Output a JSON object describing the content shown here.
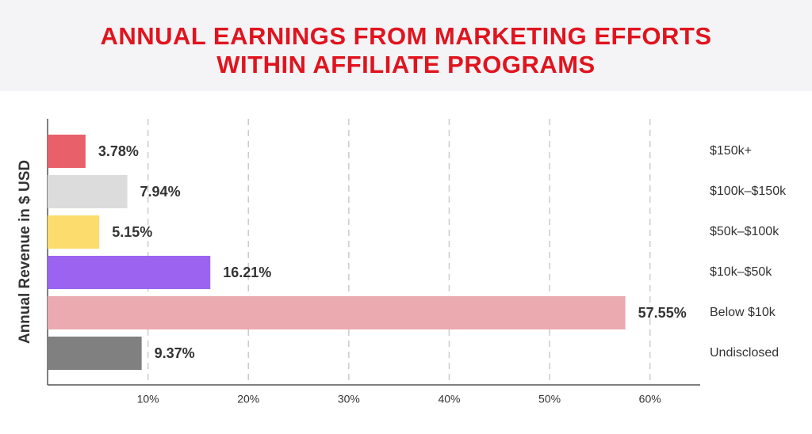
{
  "chart_data": {
    "type": "bar",
    "orientation": "horizontal",
    "title": "ANNUAL EARNINGS FROM MARKETING EFFORTS WITHIN AFFILIATE PROGRAMS",
    "y_axis_label": "Annual Revenue in $ USD",
    "categories": [
      "$150k+",
      "$100k–$150k",
      "$50k–$100k",
      "$10k–$50k",
      "Below $10k",
      "Undisclosed"
    ],
    "values": [
      3.78,
      7.94,
      5.15,
      16.21,
      57.55,
      9.37
    ],
    "value_labels": [
      "3.78%",
      "7.94%",
      "5.15%",
      "16.21%",
      "57.55%",
      "9.37%"
    ],
    "colors": [
      "#e8606a",
      "#dcdcdc",
      "#fcdc6c",
      "#9b63f0",
      "#eaaab0",
      "#808080"
    ],
    "xlim": [
      0,
      65
    ],
    "xticks": [
      {
        "value": 10,
        "label": "10%"
      },
      {
        "value": 20,
        "label": "20%"
      },
      {
        "value": 30,
        "label": "30%"
      },
      {
        "value": 40,
        "label": "40%"
      },
      {
        "value": 50,
        "label": "50%"
      },
      {
        "value": 60,
        "label": "60%"
      }
    ],
    "grid": true
  }
}
